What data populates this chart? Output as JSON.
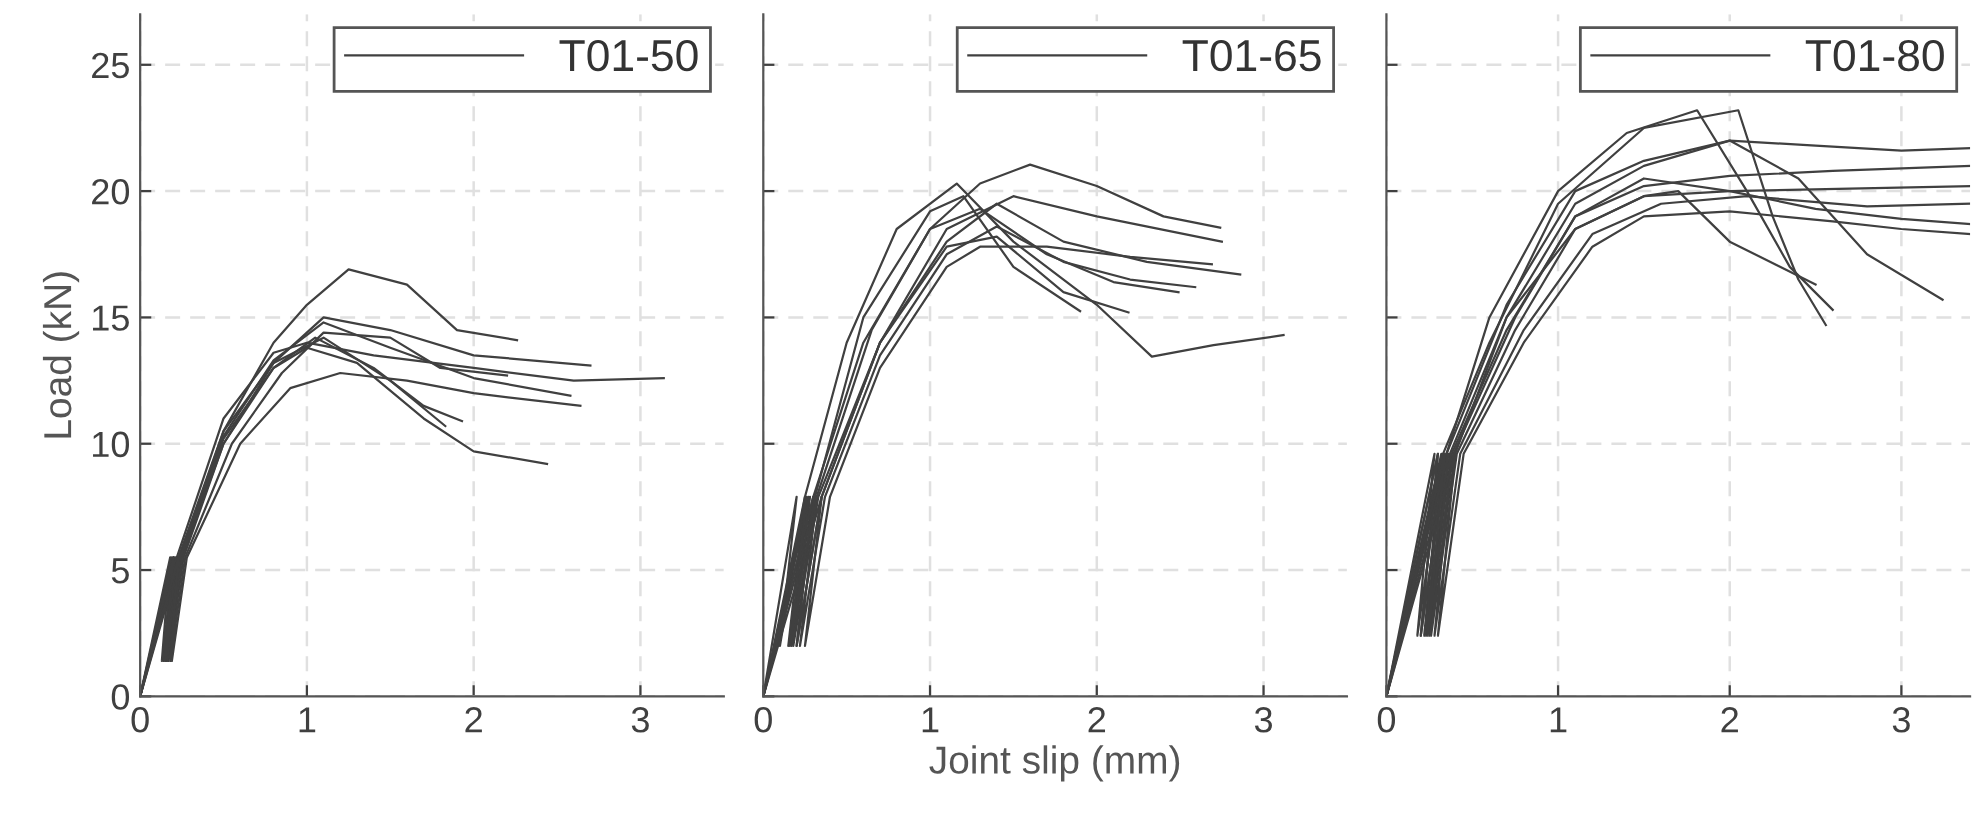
{
  "chart_data": [
    {
      "type": "line",
      "ylabel": "Load (kN)",
      "xlim": [
        0,
        3.5
      ],
      "ylim": [
        0,
        27
      ],
      "xticks": [
        0,
        1,
        2,
        3
      ],
      "yticks": [
        0,
        5,
        10,
        15,
        20,
        25
      ],
      "grid": true,
      "legend": "top right",
      "line_style": "solid",
      "marker": "none",
      "series": [
        {
          "name": "T01-50",
          "color": "#404040",
          "x": [
            0,
            0.2,
            0.15,
            0.24,
            0.5,
            0.8,
            1.0,
            1.25,
            1.6,
            1.9,
            2.26
          ],
          "values": [
            0,
            5.5,
            1.4,
            5.5,
            10.5,
            14,
            15.5,
            16.9,
            16.3,
            14.5,
            14.1
          ]
        },
        {
          "color": "#404040",
          "x": [
            0,
            0.18,
            0.13,
            0.22,
            0.5,
            0.8,
            1.0,
            1.4,
            2.0,
            2.6,
            3.14
          ],
          "values": [
            0,
            5.5,
            1.4,
            5.5,
            11,
            13.6,
            14,
            13.5,
            13,
            12.5,
            12.6
          ]
        },
        {
          "color": "#404040",
          "x": [
            0,
            0.22,
            0.17,
            0.26,
            0.5,
            0.8,
            1.1,
            1.5,
            2.0,
            2.7
          ],
          "values": [
            0,
            5.5,
            1.4,
            5.5,
            10,
            13.2,
            15,
            14.5,
            13.5,
            13.1
          ]
        },
        {
          "color": "#404040",
          "x": [
            0,
            0.2,
            0.16,
            0.25,
            0.5,
            0.8,
            1.0,
            1.3,
            1.7,
            2.0,
            2.44
          ],
          "values": [
            0,
            5.5,
            1.4,
            5.5,
            10,
            13,
            13.8,
            13.2,
            11,
            9.7,
            9.2
          ]
        },
        {
          "color": "#404040",
          "x": [
            0,
            0.19,
            0.14,
            0.23,
            0.5,
            0.8,
            1.1,
            1.5,
            1.83
          ],
          "values": [
            0,
            5.5,
            1.4,
            5.5,
            10.5,
            13.2,
            14.2,
            12.5,
            10.7
          ]
        },
        {
          "color": "#404040",
          "x": [
            0,
            0.24,
            0.19,
            0.28,
            0.6,
            0.9,
            1.2,
            1.6,
            2.0,
            2.64
          ],
          "values": [
            0,
            5.5,
            1.4,
            5.5,
            10,
            12.2,
            12.8,
            12.5,
            12,
            11.5
          ]
        },
        {
          "color": "#404040",
          "x": [
            0,
            0.21,
            0.16,
            0.25,
            0.5,
            0.8,
            1.1,
            1.5,
            2.0,
            2.58
          ],
          "values": [
            0,
            5.5,
            1.4,
            5.5,
            10.3,
            13.3,
            14.8,
            13.8,
            12.6,
            11.9
          ]
        },
        {
          "color": "#404040",
          "x": [
            0,
            0.2,
            0.15,
            0.24,
            0.5,
            0.8,
            1.05,
            1.4,
            1.7,
            1.93
          ],
          "values": [
            0,
            5.5,
            1.4,
            5.5,
            10.2,
            13,
            14.2,
            13,
            11.5,
            10.9
          ]
        },
        {
          "color": "#404040",
          "x": [
            0,
            0.23,
            0.18,
            0.27,
            0.55,
            0.85,
            1.1,
            1.5,
            1.8,
            2.2
          ],
          "values": [
            0,
            5.5,
            1.4,
            5.5,
            10,
            12.8,
            14.4,
            14.2,
            13,
            12.7
          ]
        }
      ]
    },
    {
      "type": "line",
      "xlabel": "Joint slip (mm)",
      "xlim": [
        0,
        3.5
      ],
      "ylim": [
        0,
        27
      ],
      "xticks": [
        0,
        1,
        2,
        3
      ],
      "yticks": [
        {
          "value": 0,
          "label": null
        },
        {
          "value": 5,
          "label": null
        },
        {
          "value": 10,
          "label": null
        },
        {
          "value": 15,
          "label": null
        },
        {
          "value": 20,
          "label": null
        },
        {
          "value": 25,
          "label": null
        }
      ],
      "tick_labels": "x",
      "grid": true,
      "legend": "top right",
      "line_style": "solid",
      "marker": "none",
      "series": [
        {
          "name": "T01-65",
          "color": "#404040",
          "x": [
            0,
            0.25,
            0.15,
            0.3,
            0.6,
            1.0,
            1.3,
            1.6,
            2.0,
            2.4,
            2.74
          ],
          "values": [
            0,
            7.9,
            2.0,
            7.9,
            14,
            18.5,
            20.3,
            21.05,
            20.2,
            19,
            18.55
          ]
        },
        {
          "color": "#404040",
          "x": [
            0,
            0.2,
            0.1,
            0.25,
            0.5,
            0.8,
            1.16,
            1.5,
            2.0,
            2.33,
            2.7,
            3.12
          ],
          "values": [
            0,
            7.9,
            2.0,
            7.9,
            14,
            18.5,
            20.3,
            18,
            15.5,
            13.45,
            13.9,
            14.3
          ]
        },
        {
          "color": "#404040",
          "x": [
            0,
            0.3,
            0.2,
            0.35,
            0.7,
            1.1,
            1.5,
            2.0,
            2.75
          ],
          "values": [
            0,
            7.9,
            2.0,
            7.9,
            14,
            18.5,
            19.8,
            19,
            18.0
          ]
        },
        {
          "color": "#404040",
          "x": [
            0,
            0.35,
            0.25,
            0.4,
            0.7,
            1.1,
            1.3,
            1.7,
            2.2,
            2.69
          ],
          "values": [
            0,
            7.9,
            2.0,
            7.9,
            13,
            17,
            17.8,
            17.8,
            17.4,
            17.1
          ]
        },
        {
          "color": "#404040",
          "x": [
            0,
            0.28,
            0.18,
            0.33,
            0.7,
            1.1,
            1.4,
            1.8,
            2.3,
            2.86
          ],
          "values": [
            0,
            7.9,
            2.0,
            7.9,
            14,
            18,
            19.5,
            18,
            17.2,
            16.7
          ]
        },
        {
          "color": "#404040",
          "x": [
            0,
            0.32,
            0.22,
            0.37,
            0.7,
            1.1,
            1.4,
            1.8,
            2.2,
            2.59
          ],
          "values": [
            0,
            7.9,
            2.0,
            7.9,
            13.5,
            17.5,
            18.6,
            17.2,
            16.5,
            16.2
          ]
        },
        {
          "color": "#404040",
          "x": [
            0,
            0.27,
            0.17,
            0.32,
            0.65,
            1.0,
            1.3,
            1.7,
            2.1,
            2.49
          ],
          "values": [
            0,
            7.9,
            2.0,
            7.9,
            14.5,
            18.5,
            19.3,
            17.5,
            16.4,
            16.0
          ]
        },
        {
          "color": "#404040",
          "x": [
            0,
            0.3,
            0.2,
            0.35,
            0.7,
            1.1,
            1.4,
            1.8,
            2.19
          ],
          "values": [
            0,
            7.9,
            2.0,
            7.9,
            14,
            17.8,
            18.2,
            16,
            15.2
          ]
        },
        {
          "color": "#404040",
          "x": [
            0,
            0.26,
            0.16,
            0.31,
            0.6,
            1.0,
            1.2,
            1.5,
            1.9
          ],
          "values": [
            0,
            7.9,
            2.0,
            7.9,
            15,
            19.2,
            19.8,
            17,
            15.25
          ]
        }
      ]
    },
    {
      "type": "line",
      "xlim": [
        0,
        3.4
      ],
      "ylim": [
        0,
        27
      ],
      "xticks": [
        0,
        1,
        2,
        3
      ],
      "yticks": [
        {
          "value": 0,
          "label": null
        },
        {
          "value": 5,
          "label": null
        },
        {
          "value": 10,
          "label": null
        },
        {
          "value": 15,
          "label": null
        },
        {
          "value": 20,
          "label": null
        },
        {
          "value": 25,
          "label": null
        }
      ],
      "tick_labels": "x",
      "grid": true,
      "legend": "top right",
      "line_style": "solid",
      "marker": "none",
      "series": [
        {
          "name": "T01-80",
          "color": "#404040",
          "x": [
            0,
            0.3,
            0.2,
            0.35,
            0.6,
            1.0,
            1.4,
            1.81,
            2.1,
            2.35,
            2.6
          ],
          "values": [
            0,
            9.6,
            2.4,
            9.6,
            15,
            20,
            22.3,
            23.2,
            20,
            17,
            15.3
          ]
        },
        {
          "color": "#404040",
          "x": [
            0,
            0.28,
            0.18,
            0.33,
            0.6,
            1.0,
            1.5,
            2.05,
            2.25,
            2.4,
            2.56
          ],
          "values": [
            0,
            9.6,
            2.4,
            9.6,
            14,
            19.5,
            22.5,
            23.2,
            19,
            16.5,
            14.7
          ]
        },
        {
          "color": "#404040",
          "x": [
            0,
            0.35,
            0.25,
            0.4,
            0.7,
            1.1,
            1.5,
            1.7,
            2.0,
            2.5
          ],
          "values": [
            0,
            9.6,
            2.4,
            9.6,
            15,
            18.5,
            19.8,
            20,
            18,
            16.3
          ]
        },
        {
          "color": "#404040",
          "x": [
            0,
            0.32,
            0.22,
            0.37,
            0.7,
            1.1,
            1.5,
            2.0,
            2.4,
            2.8,
            3.24
          ],
          "values": [
            0,
            9.6,
            2.4,
            9.6,
            15,
            19.5,
            21,
            22,
            20.5,
            17.5,
            15.7
          ]
        },
        {
          "color": "#404040",
          "x": [
            0,
            0.3,
            0.2,
            0.35,
            0.7,
            1.1,
            1.5,
            2.0,
            2.5,
            3.0,
            3.4
          ],
          "values": [
            0,
            9.6,
            2.4,
            9.6,
            15.5,
            20,
            21.2,
            22,
            21.8,
            21.6,
            21.7
          ]
        },
        {
          "color": "#404040",
          "x": [
            0,
            0.33,
            0.23,
            0.38,
            0.7,
            1.1,
            1.5,
            2.0,
            2.6,
            3.4
          ],
          "values": [
            0,
            9.6,
            2.4,
            9.6,
            14.5,
            19,
            20.2,
            20.6,
            20.8,
            21.0
          ]
        },
        {
          "color": "#404040",
          "x": [
            0,
            0.36,
            0.26,
            0.41,
            0.75,
            1.1,
            1.5,
            2.0,
            2.7,
            3.4
          ],
          "values": [
            0,
            9.6,
            2.4,
            9.6,
            14.5,
            18.5,
            19.8,
            20,
            20.1,
            20.2
          ]
        },
        {
          "color": "#404040",
          "x": [
            0,
            0.38,
            0.28,
            0.43,
            0.8,
            1.2,
            1.6,
            2.1,
            2.8,
            3.4
          ],
          "values": [
            0,
            9.6,
            2.4,
            9.6,
            14.5,
            18.3,
            19.5,
            19.8,
            19.4,
            19.5
          ]
        },
        {
          "color": "#404040",
          "x": [
            0,
            0.34,
            0.24,
            0.39,
            0.75,
            1.1,
            1.5,
            2.0,
            2.5,
            3.0,
            3.4
          ],
          "values": [
            0,
            9.6,
            2.4,
            9.6,
            15,
            19,
            20.5,
            20,
            19.3,
            18.9,
            18.7
          ]
        },
        {
          "color": "#404040",
          "x": [
            0,
            0.4,
            0.3,
            0.45,
            0.8,
            1.2,
            1.5,
            2.0,
            2.6,
            3.0,
            3.4
          ],
          "values": [
            0,
            9.6,
            2.4,
            9.6,
            14,
            17.8,
            19,
            19.2,
            18.8,
            18.5,
            18.3
          ]
        }
      ]
    }
  ]
}
